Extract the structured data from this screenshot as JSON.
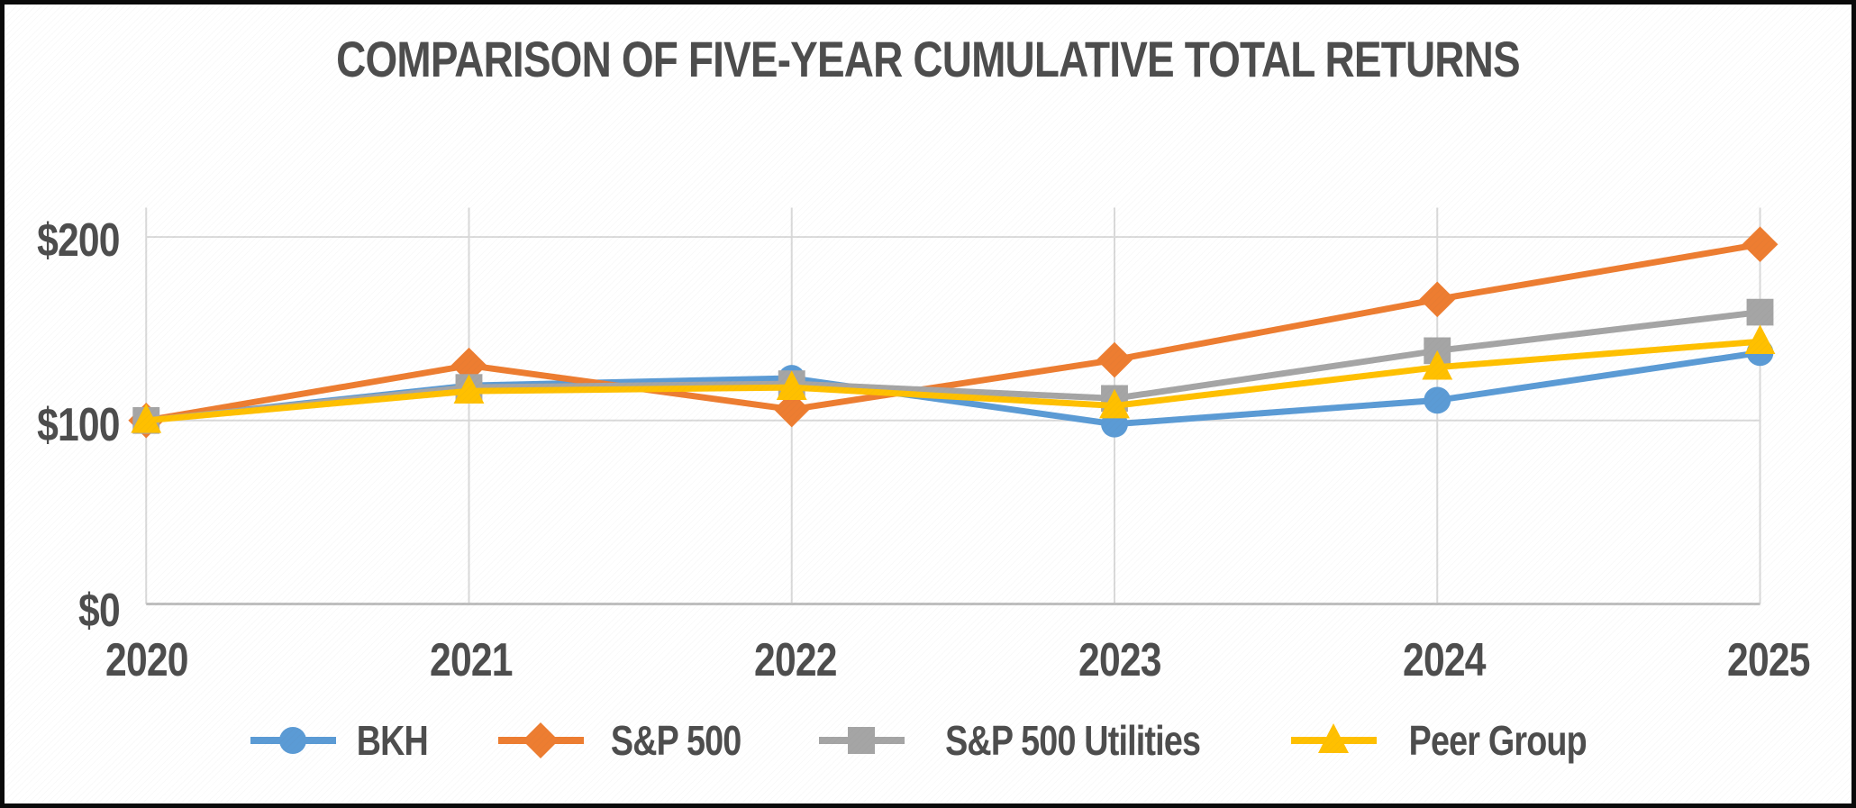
{
  "chart_data": {
    "type": "line",
    "title": "COMPARISON OF FIVE-YEAR CUMULATIVE TOTAL RETURNS",
    "xlabel": "",
    "ylabel": "",
    "categories": [
      "2020",
      "2021",
      "2022",
      "2023",
      "2024",
      "2025"
    ],
    "series": [
      {
        "name": "BKH",
        "color": "#5B9BD5",
        "marker": "circle",
        "values": [
          100,
          119,
          123,
          98,
          111,
          137
        ]
      },
      {
        "name": "S&P 500",
        "color": "#ED7D31",
        "marker": "diamond",
        "values": [
          100,
          130,
          106,
          133,
          166,
          196
        ]
      },
      {
        "name": "S&P 500 Utilities",
        "color": "#A5A5A5",
        "marker": "square",
        "values": [
          100,
          118,
          120,
          112,
          138,
          159
        ]
      },
      {
        "name": "Peer Group",
        "color": "#FFC000",
        "marker": "triangle",
        "values": [
          100,
          116,
          118,
          108,
          129,
          143
        ]
      }
    ],
    "y_ticks": [
      {
        "value": 0,
        "label": "$0"
      },
      {
        "value": 100,
        "label": "$100"
      },
      {
        "value": 200,
        "label": "$200"
      }
    ],
    "ylim": [
      0,
      216
    ],
    "grid": true,
    "legend_position": "bottom",
    "text_color": "#4D4D4D",
    "gridline_color": "#D9D9D9",
    "axis_line_color": "#BFBFBF"
  }
}
